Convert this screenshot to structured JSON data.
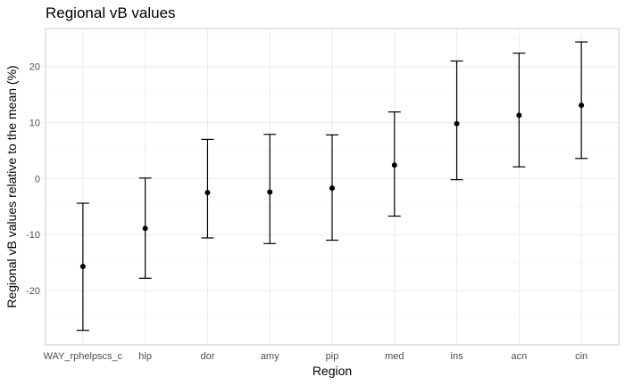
{
  "chart_data": {
    "type": "scatter",
    "title": "Regional vB values",
    "xlabel": "Region",
    "ylabel": "Regional vB values relative to the mean (%)",
    "categories": [
      "WAY_rphelpscs_c",
      "hip",
      "dor",
      "amy",
      "pip",
      "med",
      "ins",
      "acn",
      "cin"
    ],
    "values": [
      -15.7,
      -8.9,
      -2.5,
      -2.4,
      -1.7,
      2.4,
      9.8,
      11.3,
      13.1
    ],
    "lower": [
      -27.1,
      -17.8,
      -10.6,
      -11.6,
      -11.0,
      -6.7,
      -0.2,
      2.1,
      3.6
    ],
    "upper": [
      -4.4,
      0.1,
      7.0,
      7.9,
      7.8,
      11.9,
      21.0,
      22.4,
      24.4
    ],
    "ylim": [
      -29.7,
      26.8
    ],
    "yticks": [
      -20,
      -10,
      0,
      10,
      20
    ],
    "ytick_labels": [
      "-20",
      "-10",
      "0",
      "10",
      "20"
    ],
    "grid": true,
    "legend": "none",
    "colors": {
      "point": "#000000",
      "errorbar": "#000000",
      "grid": "#ebebeb",
      "panel_border": "#cccccc"
    }
  }
}
